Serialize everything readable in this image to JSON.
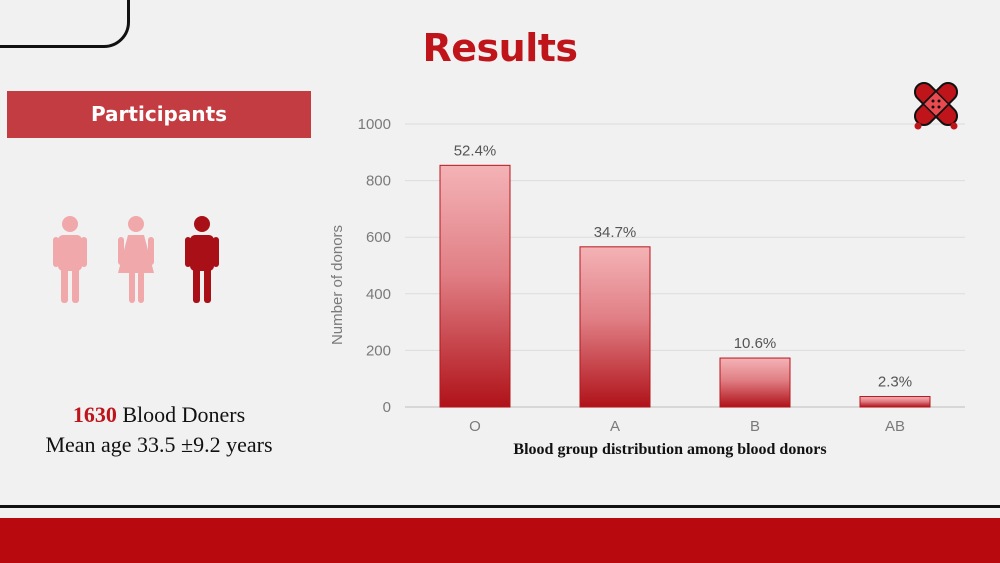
{
  "slide": {
    "title": "Results"
  },
  "participants": {
    "label": "Participants",
    "count": "1630",
    "count_label": " Blood Doners",
    "age_line": "Mean age 33.5 ±9.2 years"
  },
  "icons": [
    "male-person-icon",
    "female-person-icon",
    "male-person-icon",
    "bandage-icon"
  ],
  "colors": {
    "accent": "#c0141b",
    "bar_top": "#f4b3b6",
    "bar_bottom": "#b01219",
    "label_bg": "#c23c42",
    "footer": "#b7090e"
  },
  "chart_data": {
    "type": "bar",
    "categories": [
      "O",
      "A",
      "B",
      "AB"
    ],
    "values": [
      854,
      566,
      173,
      37
    ],
    "data_labels": [
      "52.4%",
      "34.7%",
      "10.6%",
      "2.3%"
    ],
    "title": "Blood group distribution among blood donors",
    "xlabel": "",
    "ylabel": "Number of donors",
    "ylim": [
      0,
      1000
    ],
    "yticks": [
      "0",
      "200",
      "400",
      "600",
      "800",
      "1000"
    ],
    "grid": true,
    "legend": "none"
  }
}
